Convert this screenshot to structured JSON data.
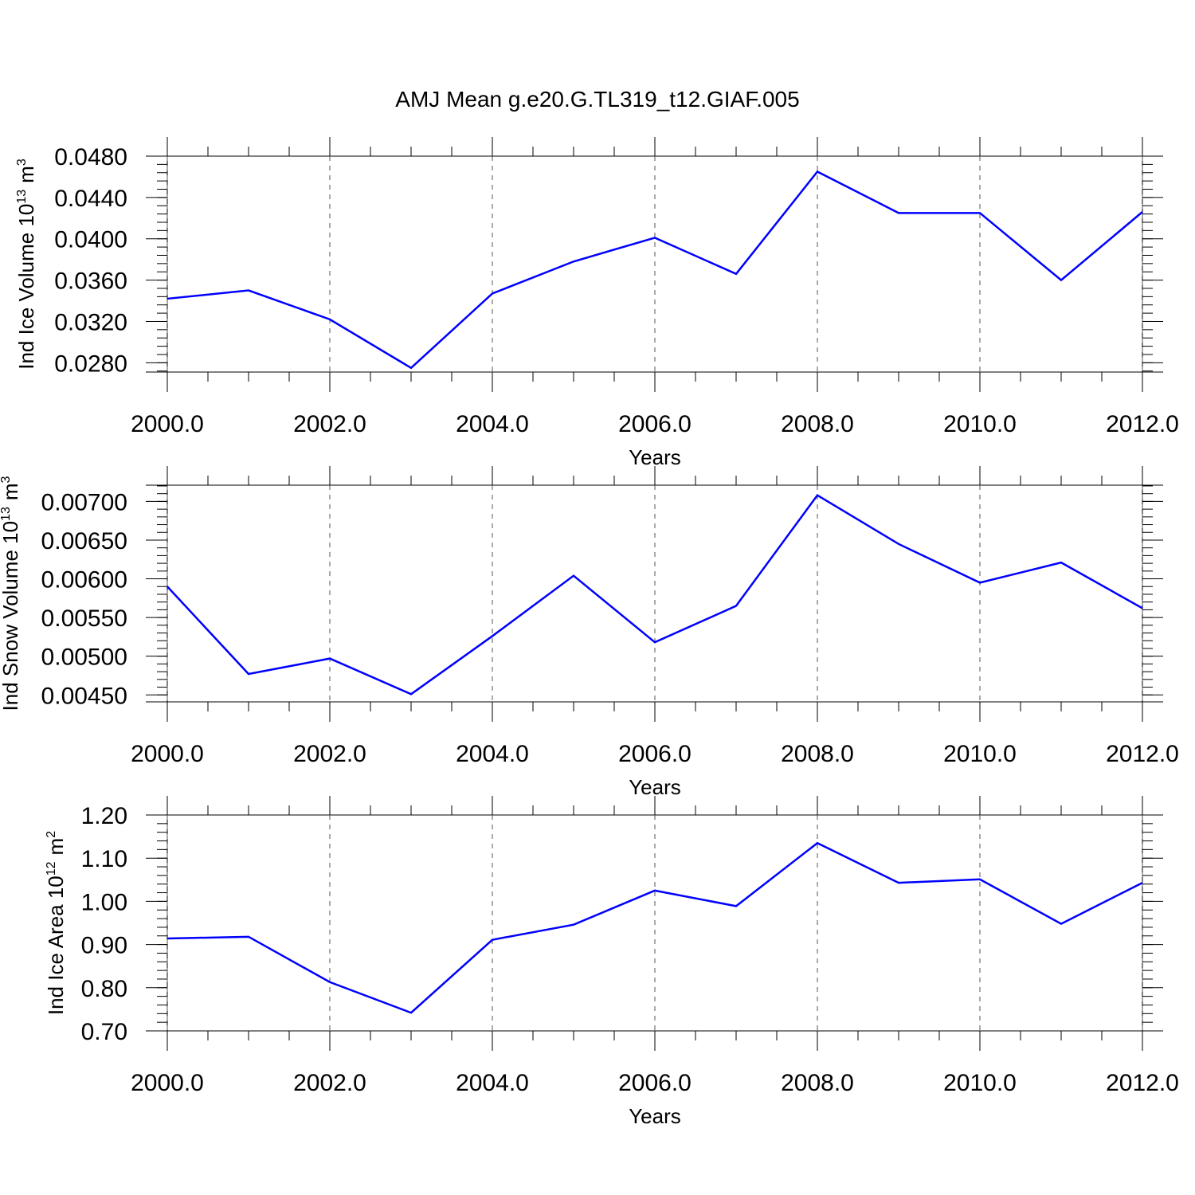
{
  "title": "AMJ Mean g.e20.G.TL319_t12.GIAF.005",
  "chart_data": [
    {
      "type": "line",
      "y_label": [
        "Ind Ice Volume 10",
        "13",
        "m",
        "3"
      ],
      "x_label": "Years",
      "x": [
        2000,
        2001,
        2002,
        2003,
        2004,
        2005,
        2006,
        2007,
        2008,
        2009,
        2010,
        2011,
        2012
      ],
      "series": [
        {
          "color": "#0000ff",
          "values": [
            0.0342,
            0.035,
            0.0322,
            0.0275,
            0.0347,
            0.0378,
            0.0401,
            0.0366,
            0.0465,
            0.0425,
            0.0425,
            0.036,
            0.0426
          ]
        }
      ],
      "xlim": [
        2000,
        2012
      ],
      "xticks": [
        {
          "value": 2000,
          "label": "2000.0"
        },
        {
          "value": 2002,
          "label": "2002.0"
        },
        {
          "value": 2004,
          "label": "2004.0"
        },
        {
          "value": 2006,
          "label": "2006.0"
        },
        {
          "value": 2008,
          "label": "2008.0"
        },
        {
          "value": 2010,
          "label": "2010.0"
        },
        {
          "value": 2012,
          "label": "2012.0"
        }
      ],
      "ylim": [
        0.0271,
        0.048
      ],
      "yticks": [
        {
          "value": 0.028,
          "label": "0.0280"
        },
        {
          "value": 0.032,
          "label": "0.0320"
        },
        {
          "value": 0.036,
          "label": "0.0360"
        },
        {
          "value": 0.04,
          "label": "0.0400"
        },
        {
          "value": 0.044,
          "label": "0.0440"
        },
        {
          "value": 0.048,
          "label": "0.0480"
        }
      ],
      "grid": true
    },
    {
      "type": "line",
      "y_label": [
        "Ind Snow Volume 10",
        "13",
        "m",
        "3"
      ],
      "x_label": "Years",
      "x": [
        2000,
        2001,
        2002,
        2003,
        2004,
        2005,
        2006,
        2007,
        2008,
        2009,
        2010,
        2011,
        2012
      ],
      "series": [
        {
          "color": "#0000ff",
          "values": [
            0.0059,
            0.00477,
            0.00497,
            0.00451,
            0.00526,
            0.00604,
            0.00518,
            0.00565,
            0.00708,
            0.00645,
            0.00595,
            0.00621,
            0.00562
          ]
        }
      ],
      "xlim": [
        2000,
        2012
      ],
      "xticks": [
        {
          "value": 2000,
          "label": "2000.0"
        },
        {
          "value": 2002,
          "label": "2002.0"
        },
        {
          "value": 2004,
          "label": "2004.0"
        },
        {
          "value": 2006,
          "label": "2006.0"
        },
        {
          "value": 2008,
          "label": "2008.0"
        },
        {
          "value": 2010,
          "label": "2010.0"
        },
        {
          "value": 2012,
          "label": "2012.0"
        }
      ],
      "ylim": [
        0.00441,
        0.00721
      ],
      "yticks": [
        {
          "value": 0.0045,
          "label": "0.00450"
        },
        {
          "value": 0.005,
          "label": "0.00500"
        },
        {
          "value": 0.0055,
          "label": "0.00550"
        },
        {
          "value": 0.006,
          "label": "0.00600"
        },
        {
          "value": 0.0065,
          "label": "0.00650"
        },
        {
          "value": 0.007,
          "label": "0.00700"
        }
      ],
      "grid": true
    },
    {
      "type": "line",
      "y_label": [
        "Ind Ice Area 10",
        "12",
        "m",
        "2"
      ],
      "x_label": "Years",
      "x": [
        2000,
        2001,
        2002,
        2003,
        2004,
        2005,
        2006,
        2007,
        2008,
        2009,
        2010,
        2011,
        2012
      ],
      "series": [
        {
          "color": "#0000ff",
          "values": [
            0.914,
            0.918,
            0.813,
            0.742,
            0.911,
            0.946,
            1.025,
            0.989,
            1.135,
            1.043,
            1.051,
            0.948,
            1.043
          ]
        }
      ],
      "xlim": [
        2000,
        2012
      ],
      "xticks": [
        {
          "value": 2000,
          "label": "2000.0"
        },
        {
          "value": 2002,
          "label": "2002.0"
        },
        {
          "value": 2004,
          "label": "2004.0"
        },
        {
          "value": 2006,
          "label": "2006.0"
        },
        {
          "value": 2008,
          "label": "2008.0"
        },
        {
          "value": 2010,
          "label": "2010.0"
        },
        {
          "value": 2012,
          "label": "2012.0"
        }
      ],
      "ylim": [
        0.7,
        1.2
      ],
      "yticks": [
        {
          "value": 0.7,
          "label": "0.70"
        },
        {
          "value": 0.8,
          "label": "0.80"
        },
        {
          "value": 0.9,
          "label": "0.90"
        },
        {
          "value": 1.0,
          "label": "1.00"
        },
        {
          "value": 1.1,
          "label": "1.10"
        },
        {
          "value": 1.2,
          "label": "1.20"
        }
      ],
      "grid": true
    }
  ]
}
